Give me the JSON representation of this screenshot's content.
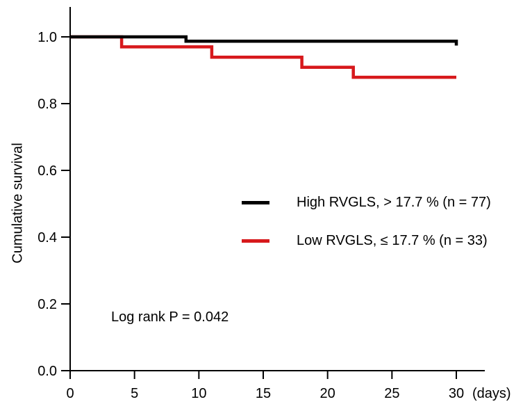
{
  "figure": {
    "ylabel": "Cumulative survival",
    "x_unit_label": "(days)",
    "annotation": "Log rank P = 0.042",
    "background_color": "#ffffff",
    "axis_color": "#000000"
  },
  "legend": {
    "items": [
      {
        "label": "High RVGLS, > 17.7 % (n = 77)",
        "color": "#000000"
      },
      {
        "label": "Low RVGLS, ≤ 17.7 % (n = 33)",
        "color": "#d7191c"
      }
    ]
  },
  "chart_data": {
    "type": "line",
    "subtype": "kaplan-meier-step",
    "title": "",
    "xlabel": "(days)",
    "ylabel": "Cumulative survival",
    "xlim": [
      0,
      30
    ],
    "ylim": [
      0.0,
      1.0
    ],
    "x_ticks": [
      0,
      5,
      10,
      15,
      20,
      25,
      30
    ],
    "y_ticks": [
      1.0,
      0.8,
      0.6,
      0.4,
      0.2,
      0.0
    ],
    "grid": false,
    "legend_position": "center-right",
    "annotations": [
      {
        "text": "Log rank P = 0.042",
        "x_day": 3.2,
        "y_value": 0.17
      }
    ],
    "series": [
      {
        "name": "High RVGLS, > 17.7 % (n = 77)",
        "color": "#000000",
        "n": 77,
        "points": [
          [
            0,
            1.0
          ],
          [
            9,
            1.0
          ],
          [
            9,
            0.987
          ],
          [
            30,
            0.987
          ],
          [
            30,
            0.974
          ]
        ]
      },
      {
        "name": "Low RVGLS, ≤ 17.7 % (n = 33)",
        "color": "#d7191c",
        "n": 33,
        "points": [
          [
            0,
            1.0
          ],
          [
            4,
            1.0
          ],
          [
            4,
            0.97
          ],
          [
            11,
            0.97
          ],
          [
            11,
            0.939
          ],
          [
            18,
            0.939
          ],
          [
            18,
            0.909
          ],
          [
            22,
            0.909
          ],
          [
            22,
            0.879
          ],
          [
            30,
            0.879
          ]
        ]
      }
    ]
  }
}
